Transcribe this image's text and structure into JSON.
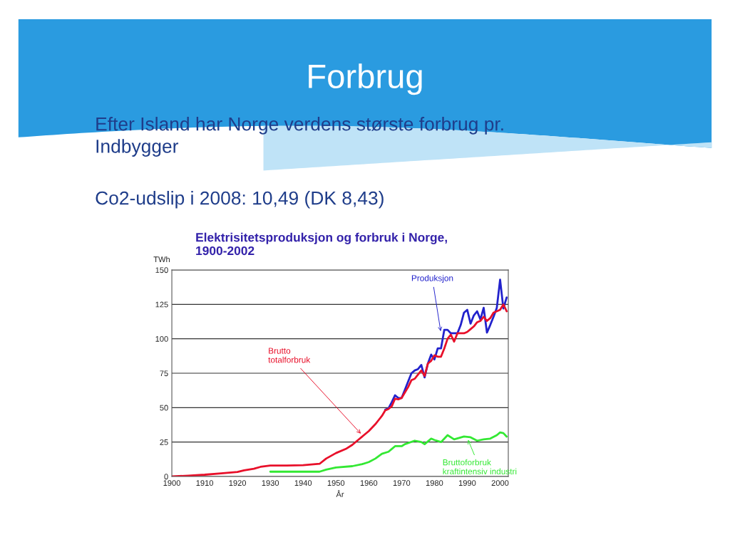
{
  "chart_data": {
    "type": "line",
    "title": "Forbrug",
    "subtitle": "Elektrisitetsproduksjon og forbruk i Norge,\n1900-2002",
    "xlabel": "År",
    "ylabel": "TWh",
    "xlim": [
      1900,
      2002.5
    ],
    "xticks": [
      1900,
      1910,
      1920,
      1930,
      1940,
      1950,
      1960,
      1970,
      1980,
      1990,
      2000
    ],
    "ylim": [
      0,
      150
    ],
    "yticks": [
      0,
      25,
      50,
      75,
      100,
      125,
      150
    ],
    "grid": "y",
    "legend": false,
    "marker": "none",
    "line_style": "solid",
    "series": [
      {
        "color": "#2222cc",
        "x": [
          1965,
          1966,
          1967,
          1968,
          1969,
          1970,
          1971,
          1972,
          1973,
          1974,
          1975,
          1976,
          1977,
          1978,
          1979,
          1980,
          1981,
          1982,
          1983,
          1984,
          1985,
          1986,
          1987,
          1988,
          1989,
          1990,
          1991,
          1992,
          1993,
          1994,
          1995,
          1996,
          1997,
          1998,
          1999,
          2000,
          2001,
          2002
        ],
        "values": [
          48.5,
          49.5,
          54,
          59,
          57,
          57,
          63,
          69,
          75,
          77,
          78,
          81,
          72,
          82,
          88.5,
          85,
          93,
          93,
          106.5,
          106.5,
          104,
          null,
          104,
          110,
          119,
          121,
          111,
          117,
          120,
          114,
          122.5,
          104.5,
          110,
          116,
          122.5,
          143,
          122,
          130
        ]
      },
      {
        "color": "#e8102a",
        "x": [
          1900,
          1905,
          1910,
          1915,
          1920,
          1922,
          1925,
          1927,
          1930,
          1935,
          1940,
          1945,
          1947,
          1950,
          1953,
          1955,
          1957,
          1960,
          1962,
          1963,
          1964,
          1965,
          1966,
          1967,
          1968,
          1969,
          1970,
          1971,
          1972,
          1973,
          1974,
          1975,
          1976,
          1977,
          1978,
          1979,
          1980,
          1981,
          1982,
          1983,
          1984,
          1985,
          1986,
          1987,
          1988,
          1989,
          1990,
          1991,
          1992,
          1993,
          1994,
          1995,
          1996,
          1997,
          1998,
          1999,
          2000,
          2001,
          2002
        ],
        "values": [
          0,
          0.6,
          1.3,
          2.3,
          3.3,
          4.5,
          5.6,
          7,
          7.9,
          8,
          8.2,
          9.2,
          13,
          17,
          20,
          23,
          27,
          33,
          38,
          41,
          44,
          48,
          49,
          51,
          56.5,
          56,
          57,
          61,
          65,
          70,
          71,
          74,
          77,
          73,
          82,
          84,
          88,
          87,
          87,
          93,
          100,
          103,
          98,
          104,
          104,
          104,
          105,
          107,
          109,
          112,
          113,
          116,
          113,
          115,
          119,
          120,
          121,
          125,
          120
        ]
      },
      {
        "color": "#33e833",
        "x": [
          1930,
          1945,
          1947,
          1950,
          1955,
          1958,
          1960,
          1962,
          1964,
          1966,
          1967,
          1968,
          1970,
          1971,
          1974,
          1976,
          1977,
          1979,
          1980,
          1982,
          1984,
          1986,
          1989,
          1991,
          1993,
          1995,
          1997,
          1999,
          2000,
          2001,
          2002
        ],
        "values": [
          3.5,
          3.5,
          5,
          6.5,
          7.5,
          9,
          10.5,
          13,
          16.5,
          18,
          20,
          22,
          22,
          23.5,
          26,
          25,
          23.5,
          27.5,
          26.5,
          25,
          30,
          27,
          29,
          28.5,
          26,
          27,
          27.5,
          30,
          32,
          31.5,
          29
        ]
      }
    ],
    "annotations": [
      "Efter Island har Norge verdens største forbrug pr.\nIndbygger",
      "Co2-udslip i 2008: 10,49 (DK 8,43)",
      {
        "text": "Produksjon",
        "x": 1982,
        "y": 104
      },
      {
        "text": "Brutto\ntotalforbruk",
        "x": 1958,
        "y": 30
      },
      {
        "text": "Bruttoforbruk\nkraftintensiv industri",
        "x": 1990,
        "y": 28
      }
    ]
  }
}
